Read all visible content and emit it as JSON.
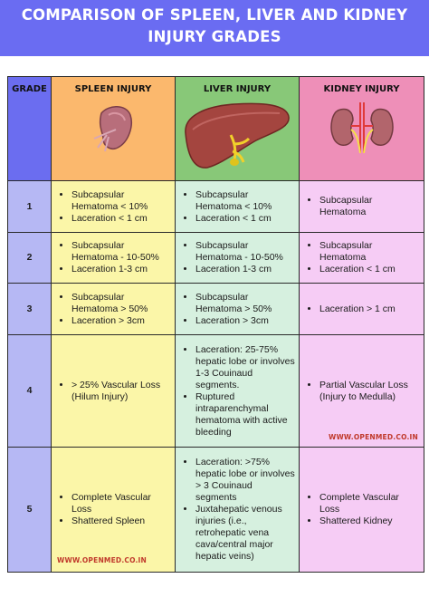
{
  "title": {
    "line1": "COMPARISON OF SPLEEN, LIVER AND KIDNEY",
    "line2": "INJURY GRADES"
  },
  "headers": {
    "grade": "GRADE",
    "spleen": "SPLEEN INJURY",
    "liver": "LIVER INJURY",
    "kidney": "KIDNEY INJURY"
  },
  "colors": {
    "banner": "#6a6cf2",
    "grade_header": "#6b6df0",
    "spleen_header": "#fbb86d",
    "liver_header": "#88c878",
    "kidney_header": "#ee8fb8",
    "grade_col": "#b6b8f4",
    "spleen_col": "#fbf6a8",
    "liver_col": "#d6f0df",
    "kidney_col": "#f6ccf5"
  },
  "icons": {
    "spleen": "spleen-organ-illustration",
    "liver": "liver-organ-illustration",
    "kidney": "kidneys-organ-illustration"
  },
  "rows": [
    {
      "grade": "1",
      "spleen": [
        "Subcapsular Hematoma < 10%",
        "Laceration < 1 cm"
      ],
      "liver": [
        "Subcapsular Hematoma < 10%",
        "Laceration < 1 cm"
      ],
      "kidney": [
        "Subcapsular Hematoma"
      ]
    },
    {
      "grade": "2",
      "spleen": [
        "Subcapsular Hematoma - 10-50%",
        "Laceration 1-3 cm"
      ],
      "liver": [
        "Subcapsular Hematoma - 10-50%",
        "Laceration 1-3 cm"
      ],
      "kidney": [
        "Subcapsular Hematoma",
        "Laceration < 1 cm"
      ]
    },
    {
      "grade": "3",
      "spleen": [
        "Subcapsular Hematoma > 50%",
        "Laceration > 3cm"
      ],
      "liver": [
        "Subcapsular Hematoma > 50%",
        "Laceration > 3cm"
      ],
      "kidney": [
        "Laceration > 1 cm"
      ]
    },
    {
      "grade": "4",
      "spleen": [
        "> 25% Vascular Loss (Hilum Injury)"
      ],
      "liver": [
        "Laceration: 25-75% hepatic lobe or involves 1-3 Couinaud segments.",
        "Ruptured intraparenchymal hematoma with active bleeding"
      ],
      "kidney": [
        "Partial Vascular Loss (Injury to Medulla)"
      ]
    },
    {
      "grade": "5",
      "spleen": [
        "Complete Vascular Loss",
        "Shattered Spleen"
      ],
      "liver": [
        "Laceration: >75% hepatic lobe or involves > 3 Couinaud segments",
        "Juxtahepatic venous injuries (i.e., retrohepatic vena cava/central major hepatic veins)"
      ],
      "kidney": [
        "Complete Vascular Loss",
        "Shattered Kidney"
      ]
    }
  ],
  "watermarks": {
    "kidney_row4": "WWW.OPENMED.CO.IN",
    "spleen_row5": "WWW.OPENMED.CO.IN"
  }
}
